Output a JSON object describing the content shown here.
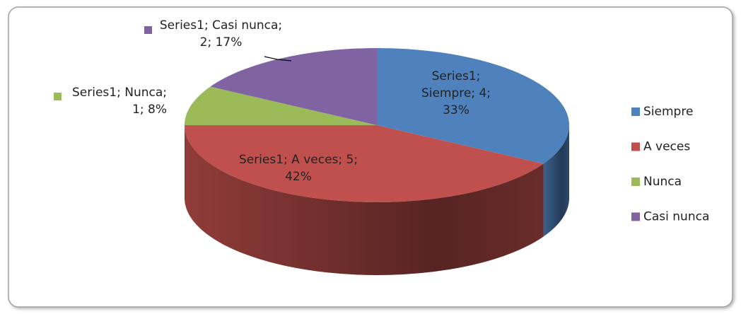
{
  "chart_data": {
    "type": "pie3d",
    "categories": [
      "Siempre",
      "A veces",
      "Nunca",
      "Casi nunca"
    ],
    "values": [
      4,
      5,
      1,
      2
    ],
    "value_labels": [
      "Series1; Siempre; 4; 33%",
      "Series1; A veces; 5; 42%",
      "Series1; Nunca; 1; 8%",
      "Series1; Casi nunca; 2; 17%"
    ],
    "colors": [
      "#4f81bd",
      "#c0504d",
      "#9bbb59",
      "#8064a2"
    ],
    "legend": "right"
  }
}
